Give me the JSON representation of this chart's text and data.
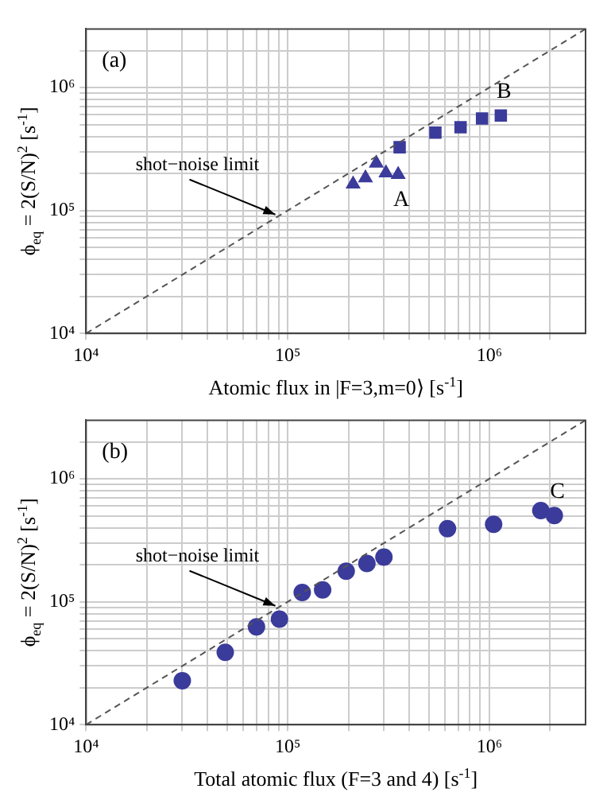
{
  "chart_data": [
    {
      "type": "scatter",
      "xlabel": "Atomic flux in |F=3,m=0⟩ [s$^{-1}$]",
      "ylabel": "ϕ$_{eq}$ = 2(S/N)$^{2}$ [s$^{-1}$]",
      "log": "xy",
      "grid": true,
      "legend": false,
      "xlim": [
        10000,
        3000000
      ],
      "ylim": [
        10000,
        3000000
      ],
      "xticks": [
        {
          "value": 10000,
          "label": "10⁴"
        },
        {
          "value": 20000,
          "label": null
        },
        {
          "value": 30000,
          "label": null
        },
        {
          "value": 40000,
          "label": null
        },
        {
          "value": 50000,
          "label": null
        },
        {
          "value": 60000,
          "label": null
        },
        {
          "value": 70000,
          "label": null
        },
        {
          "value": 80000,
          "label": null
        },
        {
          "value": 90000,
          "label": null
        },
        {
          "value": 100000,
          "label": "10⁵"
        },
        {
          "value": 200000,
          "label": null
        },
        {
          "value": 300000,
          "label": null
        },
        {
          "value": 400000,
          "label": null
        },
        {
          "value": 500000,
          "label": null
        },
        {
          "value": 600000,
          "label": null
        },
        {
          "value": 700000,
          "label": null
        },
        {
          "value": 800000,
          "label": null
        },
        {
          "value": 900000,
          "label": null
        },
        {
          "value": 1000000,
          "label": "10⁶"
        },
        {
          "value": 2000000,
          "label": null
        }
      ],
      "yticks": [
        {
          "value": 10000,
          "label": "10⁴"
        },
        {
          "value": 20000,
          "label": null
        },
        {
          "value": 30000,
          "label": null
        },
        {
          "value": 40000,
          "label": null
        },
        {
          "value": 50000,
          "label": null
        },
        {
          "value": 60000,
          "label": null
        },
        {
          "value": 70000,
          "label": null
        },
        {
          "value": 80000,
          "label": null
        },
        {
          "value": 90000,
          "label": null
        },
        {
          "value": 100000,
          "label": "10⁵"
        },
        {
          "value": 200000,
          "label": null
        },
        {
          "value": 300000,
          "label": null
        },
        {
          "value": 400000,
          "label": null
        },
        {
          "value": 500000,
          "label": null
        },
        {
          "value": 600000,
          "label": null
        },
        {
          "value": 700000,
          "label": null
        },
        {
          "value": 800000,
          "label": null
        },
        {
          "value": 900000,
          "label": null
        },
        {
          "value": 1000000,
          "label": "10⁶"
        },
        {
          "value": 2000000,
          "label": null
        }
      ],
      "series": [
        {
          "type": "line",
          "color": "#555555",
          "line_style": "dashed",
          "marker": "none",
          "x": [
            10000,
            3000000
          ],
          "values": [
            10000,
            3000000
          ]
        },
        {
          "color": "#3b3b9b",
          "marker": "triangle",
          "x": [
            211000,
            243000,
            275000,
            307000,
            353000
          ],
          "values": [
            164000,
            184000,
            242000,
            202000,
            196000
          ]
        },
        {
          "color": "#3b3b9b",
          "marker": "square",
          "x": [
            359000,
            540000,
            720000,
            920000,
            1140000
          ],
          "values": [
            327000,
            430000,
            476000,
            560000,
            592000
          ]
        }
      ],
      "annotations": [
        "(a)",
        {
          "text": "A",
          "x": 353000,
          "y": 196000
        },
        {
          "text": "B",
          "x": 1140000,
          "y": 592000
        },
        {
          "text": "shot−noise limit",
          "x": 90000,
          "y": 90000
        }
      ]
    },
    {
      "type": "scatter",
      "xlabel": "Total atomic flux (F=3 and 4) [s$^{-1}$]",
      "ylabel": "ϕ$_{eq}$ = 2(S/N)$^{2}$ [s$^{-1}$]",
      "log": "xy",
      "grid": true,
      "legend": false,
      "xlim": [
        10000,
        3000000
      ],
      "ylim": [
        10000,
        3000000
      ],
      "xticks": [
        {
          "value": 10000,
          "label": "10⁴"
        },
        {
          "value": 20000,
          "label": null
        },
        {
          "value": 30000,
          "label": null
        },
        {
          "value": 40000,
          "label": null
        },
        {
          "value": 50000,
          "label": null
        },
        {
          "value": 60000,
          "label": null
        },
        {
          "value": 70000,
          "label": null
        },
        {
          "value": 80000,
          "label": null
        },
        {
          "value": 90000,
          "label": null
        },
        {
          "value": 100000,
          "label": "10⁵"
        },
        {
          "value": 200000,
          "label": null
        },
        {
          "value": 300000,
          "label": null
        },
        {
          "value": 400000,
          "label": null
        },
        {
          "value": 500000,
          "label": null
        },
        {
          "value": 600000,
          "label": null
        },
        {
          "value": 700000,
          "label": null
        },
        {
          "value": 800000,
          "label": null
        },
        {
          "value": 900000,
          "label": null
        },
        {
          "value": 1000000,
          "label": "10⁶"
        },
        {
          "value": 2000000,
          "label": null
        }
      ],
      "yticks": [
        {
          "value": 10000,
          "label": "10⁴"
        },
        {
          "value": 20000,
          "label": null
        },
        {
          "value": 30000,
          "label": null
        },
        {
          "value": 40000,
          "label": null
        },
        {
          "value": 50000,
          "label": null
        },
        {
          "value": 60000,
          "label": null
        },
        {
          "value": 70000,
          "label": null
        },
        {
          "value": 80000,
          "label": null
        },
        {
          "value": 90000,
          "label": null
        },
        {
          "value": 100000,
          "label": "10⁵"
        },
        {
          "value": 200000,
          "label": null
        },
        {
          "value": 300000,
          "label": null
        },
        {
          "value": 400000,
          "label": null
        },
        {
          "value": 500000,
          "label": null
        },
        {
          "value": 600000,
          "label": null
        },
        {
          "value": 700000,
          "label": null
        },
        {
          "value": 800000,
          "label": null
        },
        {
          "value": 900000,
          "label": null
        },
        {
          "value": 1000000,
          "label": "10⁶"
        },
        {
          "value": 2000000,
          "label": null
        }
      ],
      "series": [
        {
          "type": "line",
          "color": "#555555",
          "line_style": "dashed",
          "marker": "none",
          "x": [
            10000,
            3000000
          ],
          "values": [
            10000,
            3000000
          ]
        },
        {
          "color": "#3b3b9b",
          "marker": "circle",
          "x": [
            30000,
            49000,
            70000,
            91000,
            118000,
            149000,
            195000,
            247000,
            300000,
            620000,
            1050000,
            1800000,
            2100000
          ],
          "values": [
            22800,
            38800,
            62400,
            72200,
            119000,
            125000,
            177000,
            205000,
            231000,
            393000,
            427000,
            552000,
            503000
          ]
        }
      ],
      "annotations": [
        "(b)",
        {
          "text": "C",
          "x": 2100000,
          "y": 503000
        },
        {
          "text": "shot−noise limit",
          "x": 90000,
          "y": 90000
        }
      ]
    }
  ]
}
